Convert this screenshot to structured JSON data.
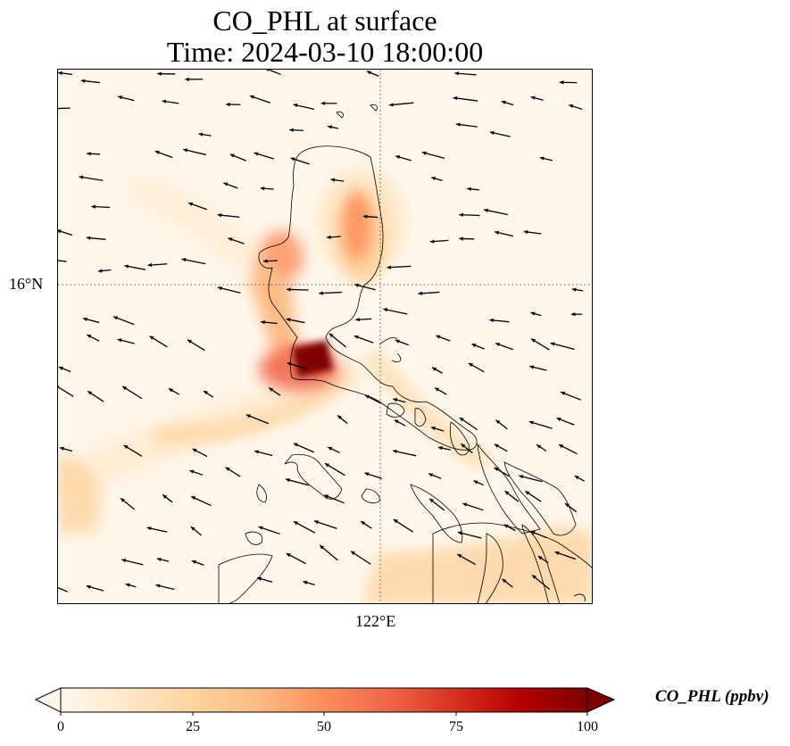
{
  "title": {
    "line1": "CO_PHL at surface",
    "line2": "Time: 2024-03-10 18:00:00"
  },
  "map": {
    "latitude_label": "16°N",
    "longitude_label": "122°E",
    "gridlines": "dotted"
  },
  "colorbar": {
    "label": "CO_PHL (ppbv)",
    "ticks": [
      "0",
      "25",
      "50",
      "75",
      "100"
    ],
    "min": 0,
    "max": 100,
    "colormap": [
      "#fff7ec",
      "#fee8c8",
      "#fdd49e",
      "#fdbb84",
      "#fc8d59",
      "#ef6548",
      "#d7301f",
      "#b30000",
      "#7f0000"
    ],
    "extend": "both"
  },
  "wind_vectors": "present"
}
